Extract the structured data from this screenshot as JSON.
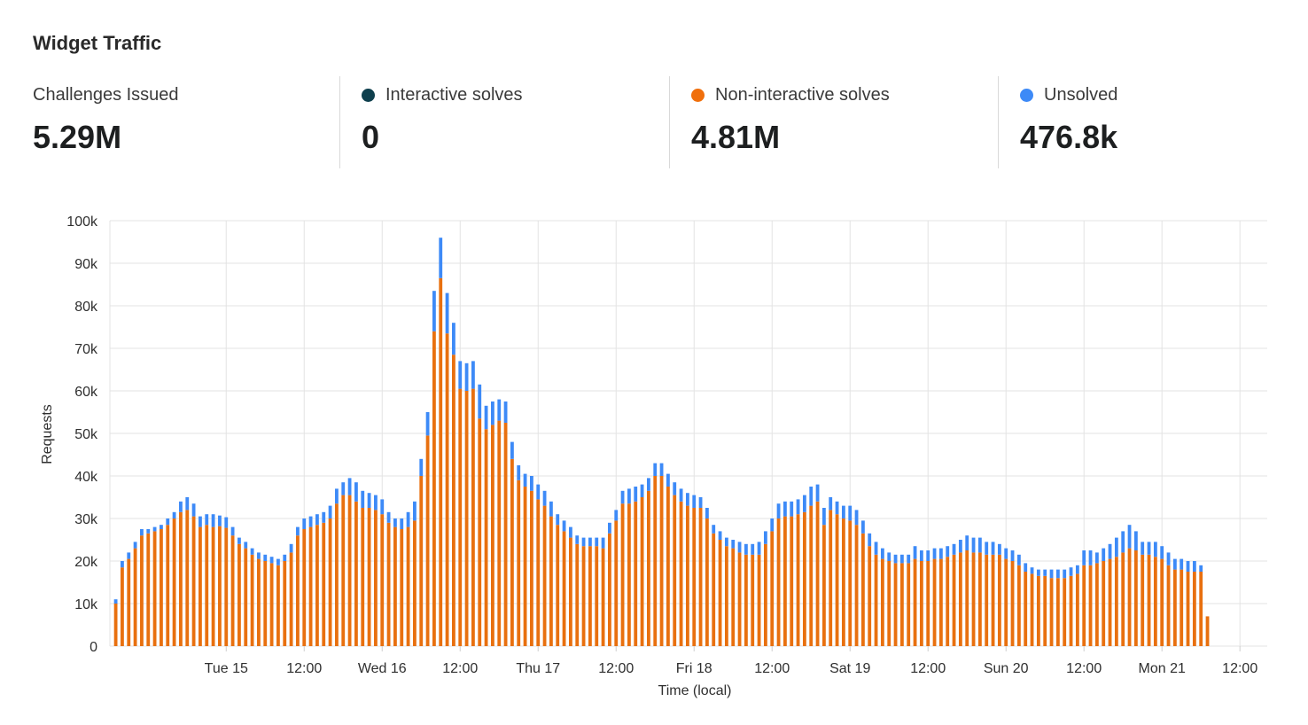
{
  "title": "Widget Traffic",
  "stats": [
    {
      "label": "Challenges Issued",
      "value": "5.29M",
      "dot": null
    },
    {
      "label": "Interactive solves",
      "value": "0",
      "dot": "#0e3f4d"
    },
    {
      "label": "Non-interactive solves",
      "value": "4.81M",
      "dot": "#f06f0c"
    },
    {
      "label": "Unsolved",
      "value": "476.8k",
      "dot": "#3d8af7"
    }
  ],
  "chart_data": {
    "type": "bar",
    "stacked": true,
    "xlabel": "Time (local)",
    "ylabel": "Requests",
    "ylim": [
      0,
      100000
    ],
    "y_ticks": [
      0,
      10000,
      20000,
      30000,
      40000,
      50000,
      60000,
      70000,
      80000,
      90000,
      100000
    ],
    "y_tick_labels": [
      "0",
      "10k",
      "20k",
      "30k",
      "40k",
      "50k",
      "60k",
      "70k",
      "80k",
      "90k",
      "100k"
    ],
    "x_ticks": [
      {
        "label": "Tue 15",
        "hour": 18
      },
      {
        "label": "12:00",
        "hour": 30
      },
      {
        "label": "Wed 16",
        "hour": 42
      },
      {
        "label": "12:00",
        "hour": 54
      },
      {
        "label": "Thu 17",
        "hour": 66
      },
      {
        "label": "12:00",
        "hour": 78
      },
      {
        "label": "Fri 18",
        "hour": 90
      },
      {
        "label": "12:00",
        "hour": 102
      },
      {
        "label": "Sat 19",
        "hour": 114
      },
      {
        "label": "12:00",
        "hour": 126
      },
      {
        "label": "Sun 20",
        "hour": 138
      },
      {
        "label": "12:00",
        "hour": 150
      },
      {
        "label": "Mon 21",
        "hour": 162
      },
      {
        "label": "12:00",
        "hour": 174
      }
    ],
    "grid": true,
    "series": [
      {
        "name": "Non-interactive solves",
        "color": "#e8700f",
        "values": [
          10000,
          18500,
          20500,
          23000,
          26000,
          26500,
          27000,
          27500,
          28500,
          30000,
          31500,
          32000,
          30500,
          28000,
          28500,
          28000,
          28200,
          27800,
          26000,
          24000,
          23000,
          21500,
          20500,
          20000,
          19500,
          19000,
          20000,
          22000,
          26000,
          27500,
          28000,
          28500,
          29000,
          30000,
          33500,
          35500,
          35500,
          34000,
          32500,
          32500,
          32000,
          31000,
          29000,
          28000,
          27500,
          28000,
          29500,
          40000,
          49500,
          74000,
          86500,
          73500,
          68500,
          60500,
          60000,
          60500,
          53500,
          51000,
          52000,
          53000,
          52500,
          44000,
          39000,
          37500,
          36500,
          34500,
          33000,
          30500,
          28500,
          27000,
          25500,
          24000,
          23500,
          23500,
          23500,
          23000,
          26500,
          29500,
          33500,
          33500,
          34000,
          35000,
          36500,
          40000,
          40000,
          37500,
          35500,
          34000,
          33000,
          32500,
          32500,
          30000,
          26500,
          25000,
          23500,
          23000,
          22000,
          21500,
          21500,
          21500,
          24000,
          27000,
          30000,
          30500,
          30500,
          31000,
          31500,
          33000,
          34000,
          28500,
          32000,
          31000,
          30000,
          29500,
          28500,
          26500,
          23500,
          21500,
          20500,
          20000,
          19500,
          19500,
          19500,
          20500,
          20000,
          20000,
          20500,
          20500,
          21000,
          21500,
          22000,
          22500,
          22000,
          22000,
          21500,
          21500,
          21500,
          20500,
          20000,
          19000,
          17500,
          17000,
          16500,
          16500,
          16000,
          16000,
          16000,
          16500,
          17000,
          19000,
          19000,
          19500,
          20000,
          20500,
          21000,
          22000,
          23000,
          22500,
          21500,
          21500,
          21000,
          20500,
          19000,
          18000,
          18000,
          17500,
          17500,
          17500,
          7000
        ]
      },
      {
        "name": "Unsolved",
        "color": "#3d8af7",
        "values": [
          1000,
          1500,
          1500,
          1500,
          1500,
          1000,
          1000,
          1000,
          1500,
          1500,
          2500,
          3000,
          3000,
          2500,
          2500,
          3000,
          2500,
          2500,
          2000,
          1500,
          1500,
          1500,
          1500,
          1500,
          1500,
          1500,
          1500,
          2000,
          2000,
          2500,
          2500,
          2500,
          2500,
          3000,
          3500,
          3000,
          4000,
          4500,
          4000,
          3500,
          3500,
          3500,
          2500,
          2000,
          2500,
          3500,
          4500,
          4000,
          5500,
          9500,
          9500,
          9500,
          7500,
          6500,
          6500,
          6500,
          8000,
          5500,
          5500,
          5000,
          5000,
          4000,
          3500,
          3000,
          3500,
          3500,
          3500,
          3500,
          2500,
          2500,
          2500,
          2000,
          2000,
          2000,
          2000,
          2500,
          2500,
          2500,
          3000,
          3500,
          3500,
          3000,
          3000,
          3000,
          3000,
          3000,
          3000,
          3000,
          3000,
          3000,
          2500,
          2500,
          2000,
          2000,
          2000,
          2000,
          2500,
          2500,
          2500,
          3000,
          3000,
          3000,
          3500,
          3500,
          3500,
          3500,
          4000,
          4500,
          4000,
          4000,
          3000,
          3000,
          3000,
          3500,
          3500,
          3000,
          3000,
          3000,
          2500,
          2000,
          2000,
          2000,
          2000,
          3000,
          2500,
          2500,
          2500,
          2500,
          2500,
          2500,
          3000,
          3500,
          3500,
          3500,
          3000,
          3000,
          2500,
          2500,
          2500,
          2500,
          2000,
          1500,
          1500,
          1500,
          2000,
          2000,
          2000,
          2000,
          2000,
          3500,
          3500,
          2500,
          3000,
          3500,
          4500,
          5000,
          5500,
          4500,
          3000,
          3000,
          3500,
          3000,
          3000,
          2500,
          2500,
          2500,
          2500,
          1500
        ]
      }
    ],
    "series_start_hour": 1,
    "hours_per_bar": 1
  }
}
